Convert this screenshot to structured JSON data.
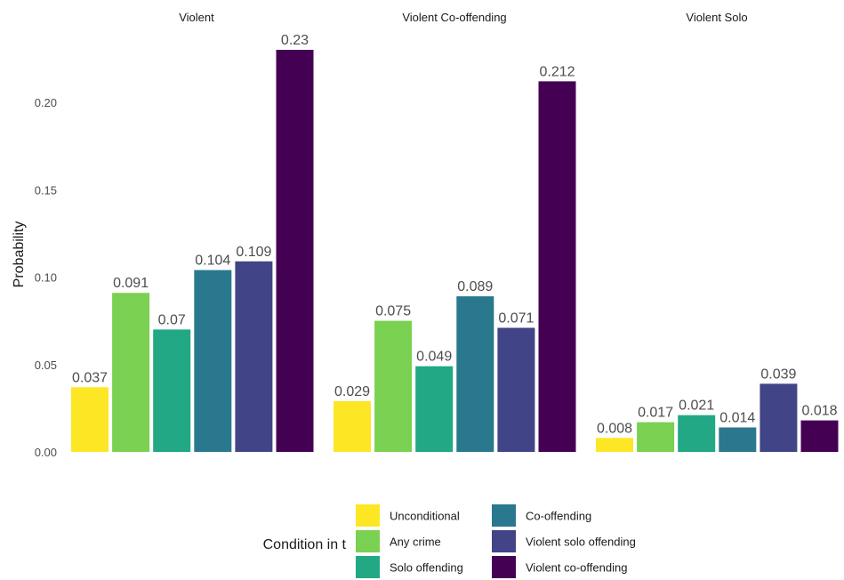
{
  "chart_data": {
    "type": "bar",
    "facets": [
      "Violent",
      "Violent Co-offending",
      "Violent Solo"
    ],
    "categories": [
      "Unconditional",
      "Any crime",
      "Solo offending",
      "Co-offending",
      "Violent solo offending",
      "Violent co-offending"
    ],
    "colors": [
      "#fde725",
      "#7ad151",
      "#22a884",
      "#2a788e",
      "#414487",
      "#440154"
    ],
    "values": [
      [
        0.037,
        0.091,
        0.07,
        0.104,
        0.109,
        0.23
      ],
      [
        0.029,
        0.075,
        0.049,
        0.089,
        0.071,
        0.212
      ],
      [
        0.008,
        0.017,
        0.021,
        0.014,
        0.039,
        0.018
      ]
    ],
    "data_labels": [
      [
        "0.037",
        "0.091",
        "0.07",
        "0.104",
        "0.109",
        "0.23"
      ],
      [
        "0.029",
        "0.075",
        "0.049",
        "0.089",
        "0.071",
        "0.212"
      ],
      [
        "0.008",
        "0.017",
        "0.021",
        "0.014",
        "0.039",
        "0.018"
      ]
    ],
    "ylabel": "Probability",
    "xlabel": "",
    "yticks": [
      "0.00",
      "0.05",
      "0.10",
      "0.15",
      "0.20"
    ],
    "ytick_values": [
      0,
      0.05,
      0.1,
      0.15,
      0.2
    ],
    "ylim": [
      0,
      0.23
    ],
    "grid": false,
    "legend": {
      "title": "Condition in t",
      "position": "bottom",
      "columns": 2
    }
  }
}
